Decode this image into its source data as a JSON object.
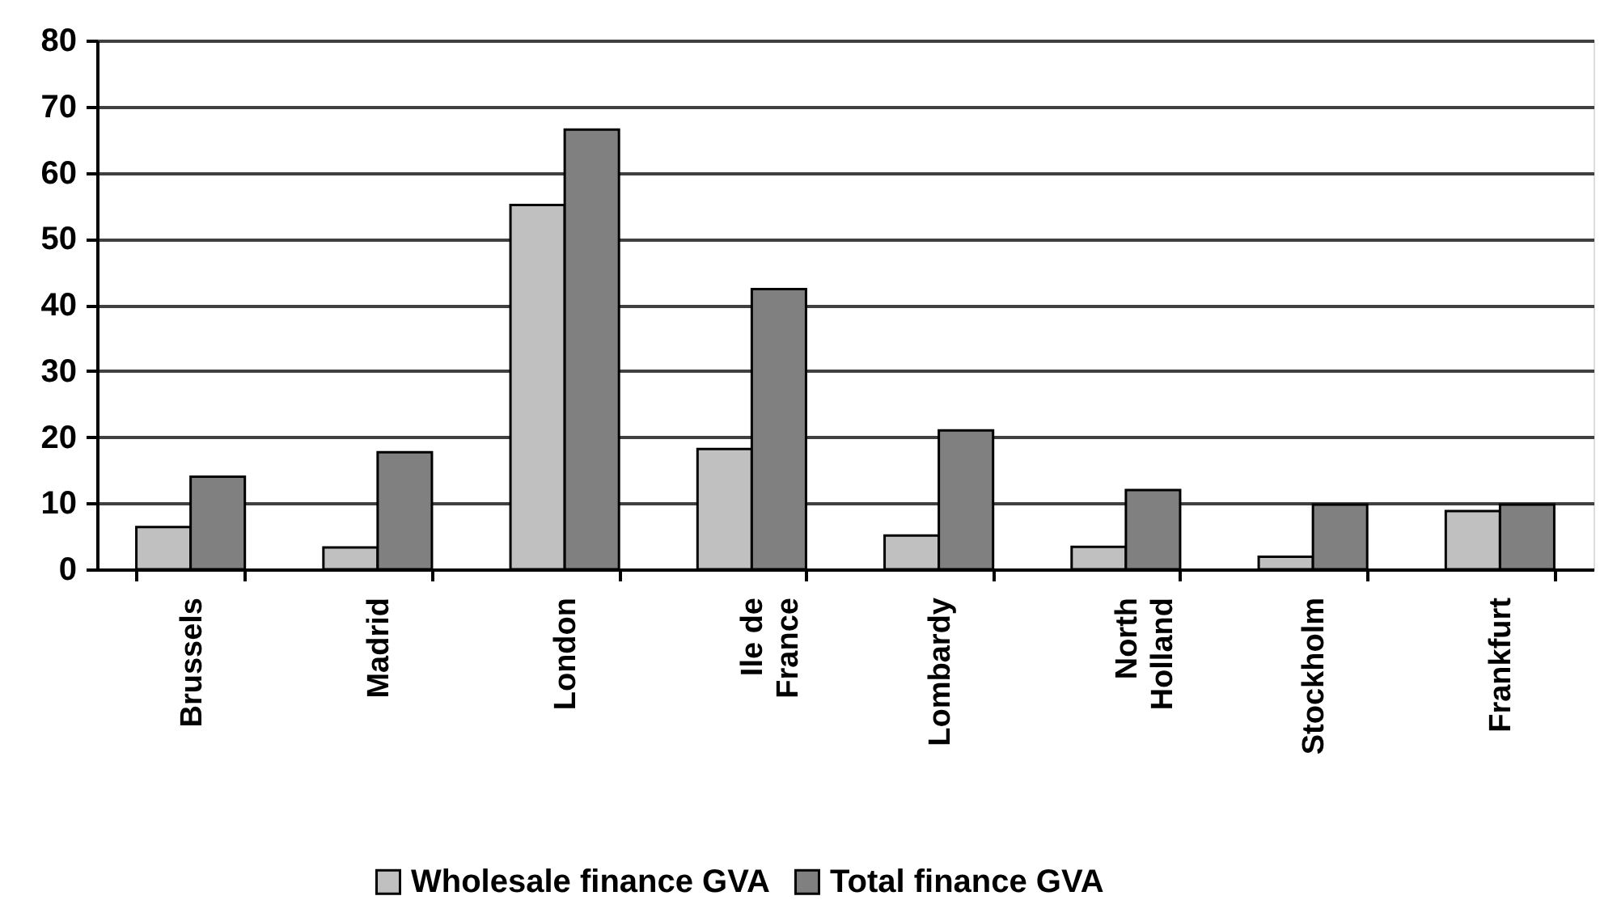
{
  "chart_data": {
    "type": "bar",
    "categories": [
      "Brussels",
      "Madrid",
      "London",
      "Ile de France",
      "Lombardy",
      "North Holland",
      "Stockholm",
      "Frankfurt"
    ],
    "series": [
      {
        "name": "Wholesale finance GVA",
        "color": "#c0c0c0",
        "values": [
          6.4,
          3.3,
          55.1,
          18.2,
          5.1,
          3.4,
          1.9,
          8.8
        ]
      },
      {
        "name": "Total finance GVA",
        "color": "#808080",
        "values": [
          14.0,
          17.7,
          66.5,
          42.4,
          21.0,
          12.0,
          9.8,
          9.8
        ]
      }
    ],
    "ylim": [
      0,
      80
    ],
    "yticks": [
      0,
      10,
      20,
      30,
      40,
      50,
      60,
      70,
      80
    ],
    "grid": "y",
    "legend": "bottom"
  }
}
